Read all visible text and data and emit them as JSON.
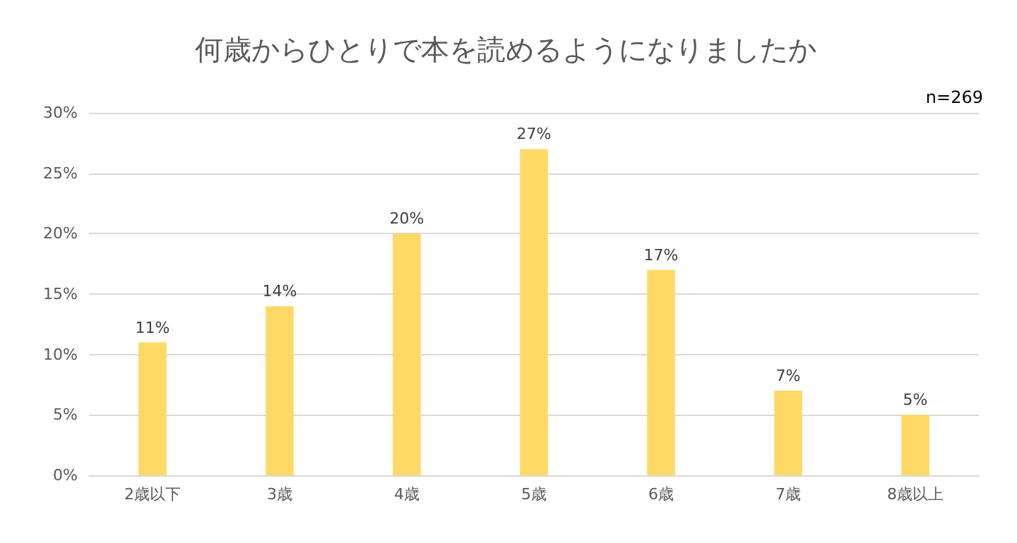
{
  "chart_data": {
    "type": "bar",
    "title": "何歳からひとりで本を読めるようになりましたか",
    "annotations": [
      "n=269"
    ],
    "categories": [
      "2歳以下",
      "3歳",
      "4歳",
      "5歳",
      "6歳",
      "7歳",
      "8歳以上"
    ],
    "values": [
      11,
      14,
      20,
      27,
      17,
      7,
      5
    ],
    "value_labels": [
      "11%",
      "14%",
      "20%",
      "27%",
      "17%",
      "7%",
      "5%"
    ],
    "color": "#ffd966",
    "ylim": [
      0,
      30
    ],
    "yticks": [
      {
        "value": 0,
        "label": "0%"
      },
      {
        "value": 5,
        "label": "5%"
      },
      {
        "value": 10,
        "label": "10%"
      },
      {
        "value": 15,
        "label": "15%"
      },
      {
        "value": 20,
        "label": "20%"
      },
      {
        "value": 25,
        "label": "25%"
      },
      {
        "value": 30,
        "label": "30%"
      }
    ],
    "grid": "y"
  }
}
